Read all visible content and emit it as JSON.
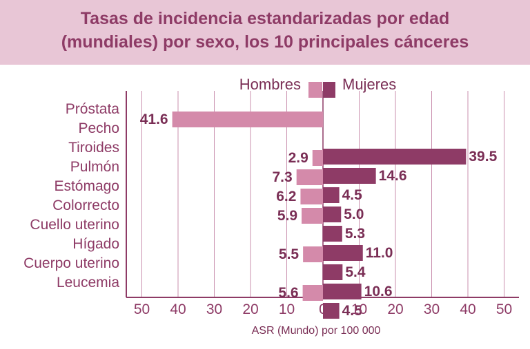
{
  "title": {
    "line1": "Tasas de incidencia estandarizadas por edad",
    "line2": "(mundiales) por sexo, los 10 principales cánceres"
  },
  "chart_data": {
    "type": "bar",
    "orientation": "horizontal-diverging",
    "categories": [
      "Próstata",
      "Pecho",
      "Tiroides",
      "Pulmón",
      "Estómago",
      "Colorrecto",
      "Cuello uterino",
      "Hígado",
      "Cuerpo uterino",
      "Leucemia"
    ],
    "series": [
      {
        "name": "Hombres",
        "color": "#d48aaa",
        "direction": "left",
        "values": [
          41.6,
          0,
          2.9,
          7.3,
          6.2,
          5.9,
          0,
          5.5,
          0,
          5.6
        ],
        "labels": [
          "41.6",
          "",
          "2.9",
          "7.3",
          "6.2",
          "5.9",
          "",
          "5.5",
          "",
          "5.6"
        ]
      },
      {
        "name": "Mujeres",
        "color": "#8e3b66",
        "direction": "right",
        "values": [
          0,
          39.5,
          14.6,
          4.5,
          5.0,
          5.3,
          11.0,
          5.4,
          10.6,
          4.5
        ],
        "labels": [
          "",
          "39.5",
          "14.6",
          "4.5",
          "5.0",
          "5.3",
          "11.0",
          "5.4",
          "10.6",
          "4.5"
        ]
      }
    ],
    "xticks": [
      "50",
      "40",
      "30",
      "20",
      "10",
      "0",
      "10",
      "20",
      "30",
      "40",
      "50"
    ],
    "xlabel": "ASR  (Mundo) por 100 000",
    "xlim": [
      -50,
      50
    ],
    "grid": true,
    "legend": "top"
  }
}
